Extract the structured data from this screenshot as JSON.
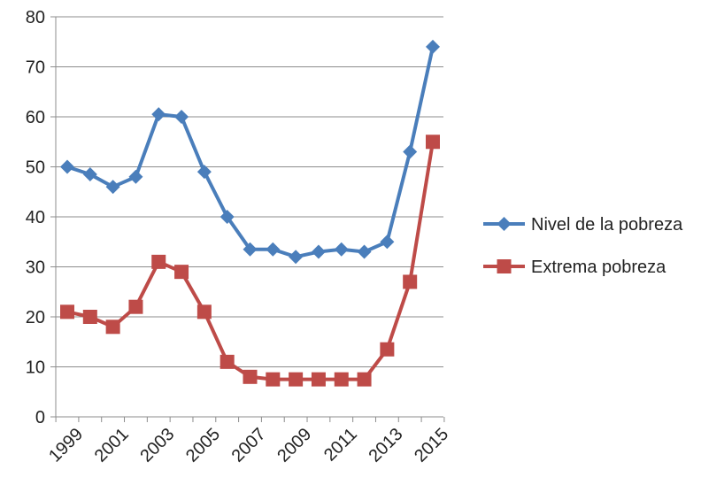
{
  "chart_data": {
    "type": "line",
    "x": [
      1999,
      2000,
      2001,
      2002,
      2003,
      2004,
      2005,
      2006,
      2007,
      2008,
      2009,
      2010,
      2011,
      2012,
      2013,
      2014,
      2015
    ],
    "x_tick_labels": [
      "1999",
      "2001",
      "2003",
      "2005",
      "2007",
      "2009",
      "2011",
      "2013",
      "2015"
    ],
    "ylim": [
      0,
      80
    ],
    "y_ticks": [
      0,
      10,
      20,
      30,
      40,
      50,
      60,
      70,
      80
    ],
    "grid": "horizontal",
    "legend_position": "right",
    "series": [
      {
        "name": "Nivel de la pobreza",
        "color": "#4a7ebb",
        "marker": "diamond",
        "values": [
          50.0,
          48.5,
          46.0,
          48.0,
          60.5,
          60.0,
          49.0,
          40.0,
          33.5,
          33.5,
          32.0,
          33.0,
          33.5,
          33.0,
          35.0,
          53.0,
          74.0
        ]
      },
      {
        "name": "Extrema pobreza",
        "color": "#be4b48",
        "marker": "square",
        "values": [
          21.0,
          20.0,
          18.0,
          22.0,
          31.0,
          29.0,
          21.0,
          11.0,
          8.0,
          7.5,
          7.5,
          7.5,
          7.5,
          7.5,
          13.5,
          27.0,
          55.0
        ]
      }
    ],
    "title": "",
    "xlabel": "",
    "ylabel": ""
  }
}
